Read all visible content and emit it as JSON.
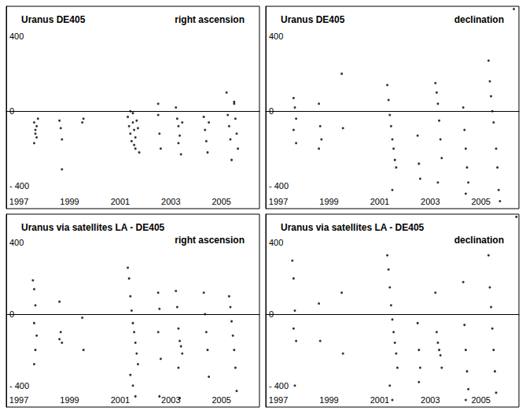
{
  "chart_data": [
    {
      "type": "scatter",
      "title": "Uranus DE405",
      "subtitle": "right ascension",
      "color": "#000000",
      "marker": "circle",
      "grid": false,
      "xlim": [
        1996.5,
        2006.5
      ],
      "xticks": [
        1997,
        1999,
        2001,
        2003,
        2005
      ],
      "ylim": [
        -520,
        560
      ],
      "yticks": [
        {
          "value": -400,
          "label": "- 400"
        },
        0,
        400
      ],
      "x": [
        1997.6,
        1997.65,
        1997.7,
        1997.6,
        1997.75,
        1997.7,
        1997.65,
        1998.6,
        1998.65,
        1998.7,
        1998.7,
        1999.5,
        1999.55,
        2001.3,
        2001.35,
        2001.4,
        2001.45,
        2001.5,
        2001.5,
        2001.55,
        2001.6,
        2001.6,
        2001.65,
        2001.7,
        2001.75,
        2001.4,
        2001.55,
        2002.5,
        2002.5,
        2002.55,
        2002.6,
        2003.2,
        2003.25,
        2003.3,
        2003.35,
        2003.4,
        2003.3,
        2003.45,
        2004.3,
        2004.35,
        2004.4,
        2004.45,
        2004.5,
        2005.2,
        2005.25,
        2005.3,
        2005.35,
        2005.4,
        2005.5,
        2005.55,
        2005.6,
        2005.65,
        2005.5
      ],
      "values": [
        -60,
        -100,
        -140,
        -170,
        -40,
        -80,
        -120,
        -50,
        -90,
        -150,
        -310,
        -60,
        -40,
        -30,
        -80,
        -120,
        -160,
        -10,
        -60,
        -100,
        -140,
        -200,
        -50,
        -90,
        -220,
        0,
        -180,
        40,
        -20,
        -120,
        -200,
        20,
        -40,
        -80,
        -130,
        -230,
        -170,
        -60,
        -30,
        -100,
        -160,
        -220,
        -60,
        100,
        -20,
        -80,
        -150,
        -260,
        40,
        -40,
        -120,
        -200,
        50
      ]
    },
    {
      "type": "scatter",
      "title": "Uranus DE405",
      "subtitle": "declination",
      "color": "#000000",
      "marker": "circle",
      "grid": false,
      "xlim": [
        1996.5,
        2006.5
      ],
      "xticks": [
        1997,
        1999,
        2001,
        2003,
        2005
      ],
      "ylim": [
        -520,
        560
      ],
      "yticks": [
        {
          "value": -400,
          "label": "- 400"
        },
        0,
        400
      ],
      "x": [
        1997.6,
        1997.65,
        1997.7,
        1997.6,
        1997.7,
        1998.6,
        1998.65,
        1998.7,
        1998.6,
        1999.5,
        1999.55,
        2001.3,
        2001.35,
        2001.4,
        2001.45,
        2001.5,
        2001.55,
        2001.6,
        2001.65,
        2001.5,
        2002.5,
        2002.55,
        2002.6,
        2003.2,
        2003.25,
        2003.3,
        2003.35,
        2003.4,
        2003.45,
        2003.3,
        2004.3,
        2004.35,
        2004.4,
        2004.45,
        2004.5,
        2004.4,
        2005.3,
        2005.35,
        2005.4,
        2005.45,
        2005.5,
        2005.6,
        2005.65,
        2005.7,
        2005.75,
        2006.3
      ],
      "values": [
        70,
        20,
        -40,
        -100,
        -170,
        40,
        -80,
        -150,
        -200,
        200,
        -90,
        140,
        60,
        -20,
        -80,
        -150,
        -200,
        -260,
        -300,
        -420,
        -130,
        -280,
        -360,
        150,
        100,
        40,
        -50,
        -150,
        -250,
        -380,
        20,
        -100,
        -200,
        -300,
        -380,
        -440,
        270,
        160,
        80,
        0,
        -60,
        -200,
        -300,
        -420,
        -480,
        545
      ]
    },
    {
      "type": "scatter",
      "title": "Uranus via satellites LA - DE405",
      "subtitle": "right ascension",
      "color": "#000000",
      "marker": "circle",
      "grid": false,
      "xlim": [
        1996.5,
        2006.5
      ],
      "xticks": [
        1997,
        1999,
        2001,
        2003,
        2005
      ],
      "ylim": [
        -520,
        560
      ],
      "yticks": [
        {
          "value": -400,
          "label": "- 400"
        },
        0,
        400
      ],
      "x": [
        1997.55,
        1997.6,
        1997.65,
        1997.6,
        1997.7,
        1997.65,
        1997.6,
        1998.6,
        1998.65,
        1998.6,
        1998.7,
        1999.5,
        1999.55,
        2001.3,
        2001.35,
        2001.4,
        2001.45,
        2001.5,
        2001.55,
        2001.6,
        2001.65,
        2001.7,
        2001.4,
        2001.5,
        2001.6,
        2002.5,
        2002.55,
        2002.5,
        2002.6,
        2002.55,
        2003.2,
        2003.25,
        2003.3,
        2003.35,
        2003.4,
        2003.45,
        2003.3,
        2003.35,
        2004.3,
        2004.35,
        2004.4,
        2004.45,
        2004.5,
        2005.3,
        2005.35,
        2005.4,
        2005.45,
        2005.5,
        2005.55,
        2005.6
      ],
      "values": [
        190,
        140,
        50,
        -50,
        -120,
        -200,
        -280,
        70,
        -100,
        -140,
        -160,
        -20,
        -200,
        260,
        200,
        100,
        20,
        -50,
        -100,
        -160,
        -220,
        -280,
        -340,
        -400,
        -460,
        120,
        30,
        -100,
        -250,
        -460,
        130,
        40,
        -80,
        -150,
        -180,
        -220,
        -300,
        -470,
        120,
        0,
        -100,
        -200,
        -350,
        100,
        40,
        -40,
        -120,
        -200,
        -300,
        -430
      ]
    },
    {
      "type": "scatter",
      "title": "Uranus via satellites LA - DE405",
      "subtitle": "declination",
      "color": "#000000",
      "marker": "circle",
      "grid": false,
      "xlim": [
        1996.5,
        2006.5
      ],
      "xticks": [
        1997,
        1999,
        2001,
        2003,
        2005
      ],
      "ylim": [
        -520,
        560
      ],
      "yticks": [
        {
          "value": -400,
          "label": "- 400"
        },
        0,
        400
      ],
      "x": [
        1997.55,
        1997.6,
        1997.65,
        1997.6,
        1997.7,
        1997.65,
        1998.6,
        1998.65,
        1999.5,
        1999.55,
        2001.3,
        2001.35,
        2001.4,
        2001.45,
        2001.5,
        2001.55,
        2001.6,
        2001.65,
        2001.7,
        2001.4,
        2001.5,
        2002.5,
        2002.55,
        2002.6,
        2002.55,
        2003.2,
        2003.25,
        2003.3,
        2003.35,
        2003.4,
        2003.45,
        2004.3,
        2004.35,
        2004.4,
        2004.45,
        2004.5,
        2004.4,
        2005.3,
        2005.35,
        2005.4,
        2005.45,
        2005.5,
        2005.55,
        2005.6,
        2006.4
      ],
      "values": [
        300,
        200,
        20,
        -80,
        -150,
        -400,
        60,
        -150,
        120,
        -220,
        330,
        250,
        150,
        50,
        -30,
        -100,
        -160,
        -220,
        -300,
        -400,
        -480,
        -50,
        -200,
        -300,
        -380,
        120,
        -100,
        -160,
        -200,
        -230,
        -300,
        180,
        -60,
        -200,
        -320,
        -420,
        -480,
        330,
        150,
        40,
        -80,
        -200,
        -320,
        -440,
        545
      ]
    }
  ]
}
